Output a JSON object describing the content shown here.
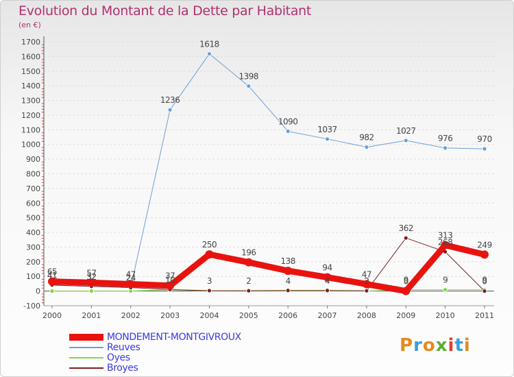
{
  "header": {
    "title": "Evolution du Montant de la Dette par Habitant",
    "subtitle": "(en €)"
  },
  "logo": {
    "text": "Proxiti"
  },
  "colors": {
    "title": "#b03070",
    "legend_text": "#3a3adf",
    "axis": "#555555"
  },
  "chart_data": {
    "type": "line",
    "title": "Evolution du Montant de la Dette par Habitant",
    "ylabel": "(en €)",
    "xlabel": "",
    "categories": [
      "2000",
      "2001",
      "2002",
      "2003",
      "2004",
      "2005",
      "2006",
      "2007",
      "2008",
      "2009",
      "2010",
      "2011"
    ],
    "ylim": [
      -100,
      1700
    ],
    "yticks": [
      -100,
      0,
      100,
      200,
      300,
      400,
      500,
      600,
      700,
      800,
      900,
      1000,
      1100,
      1200,
      1300,
      1400,
      1500,
      1600,
      1700
    ],
    "series": [
      {
        "name": "MONDEMENT-MONTGIVROUX",
        "color": "#e8130f",
        "values": [
          65,
          57,
          47,
          37,
          250,
          196,
          138,
          94,
          47,
          0,
          313,
          249
        ],
        "labels": [
          "65",
          "57",
          "47",
          "37",
          "250",
          "196",
          "138",
          "94",
          "47",
          "0",
          "313",
          "249"
        ]
      },
      {
        "name": "Reuves",
        "color": "#6a9fd8",
        "values": [
          41,
          32,
          24,
          1236,
          1618,
          1398,
          1090,
          1037,
          982,
          1027,
          976,
          970
        ],
        "labels": [
          "41",
          "32",
          "24",
          "1236",
          "1618",
          "1398",
          "1090",
          "1037",
          "982",
          "1027",
          "976",
          "970"
        ]
      },
      {
        "name": "Oyes",
        "color": "#7fd84a",
        "values": [
          0,
          0,
          0,
          10,
          0,
          0,
          0,
          0,
          0,
          9,
          9,
          9
        ],
        "labels": [
          "",
          "",
          "",
          "",
          "",
          "",
          "",
          "",
          "",
          "9",
          "9",
          "9"
        ]
      },
      {
        "name": "Broyes",
        "color": "#7a2020",
        "values": [
          41,
          32,
          24,
          10,
          3,
          2,
          4,
          4,
          2,
          362,
          268,
          0
        ],
        "labels": [
          "41",
          "32",
          "24",
          "10",
          "3",
          "2",
          "4",
          "4",
          "2",
          "362",
          "268",
          "0"
        ]
      }
    ]
  }
}
